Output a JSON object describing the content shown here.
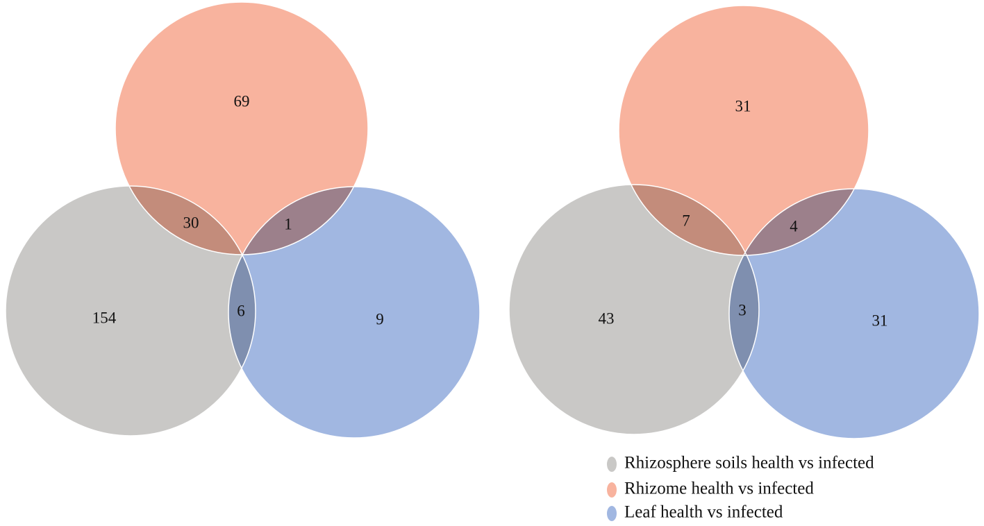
{
  "chart_data": [
    {
      "type": "venn",
      "values": [
        69,
        30,
        1,
        154,
        6,
        9
      ]
    },
    {
      "type": "venn",
      "values": [
        31,
        7,
        4,
        43,
        3,
        31
      ]
    }
  ],
  "legend": {
    "corner": "bottom-right",
    "series": [
      {
        "name": "Rhizosphere soils health vs infected",
        "color": "#c9c8c6"
      },
      {
        "name": "Rhizome health vs infected",
        "color": "#f8b39e"
      },
      {
        "name": "Leaf health vs infected",
        "color": "#a1b7e1"
      }
    ]
  }
}
